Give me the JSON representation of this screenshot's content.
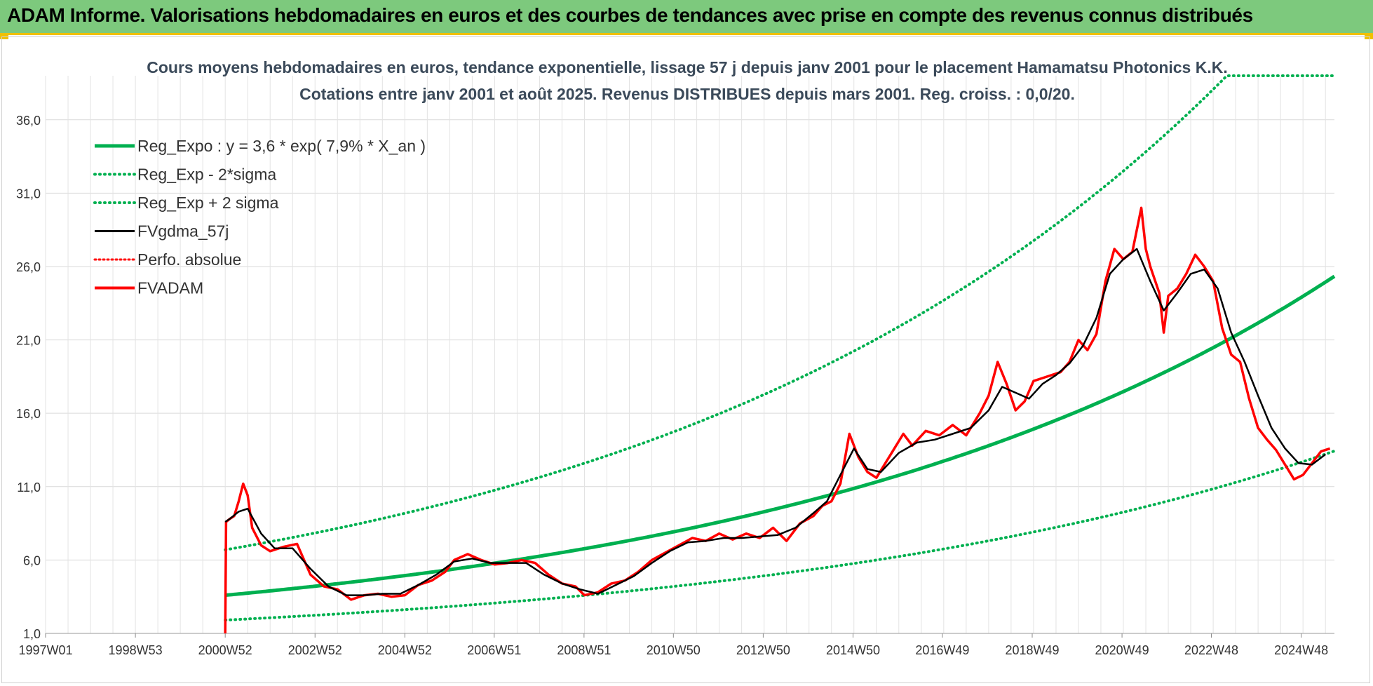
{
  "banner": {
    "title": "ADAM Informe. Valorisations hebdomadaires en euros et des courbes de tendances avec prise en compte des revenus connus distribués"
  },
  "colors": {
    "banner_bg": "#7dc97d",
    "accent": "#f0c000",
    "trend": "#00b050",
    "fvgdma": "#000000",
    "fvadam": "#ff0000",
    "perfo": "#ff0000"
  },
  "chart_data": {
    "type": "line",
    "title": "Cours moyens hebdomadaires en euros, tendance exponentielle, lissage 57 j depuis janv 2001 pour le placement Hamamatsu Photonics K.K.",
    "subtitle": "Cotations entre janv 2001 et août 2025. Revenus DISTRIBUES depuis mars 2001. Reg. croiss. : 0,0/20.",
    "xlabel": "",
    "ylabel": "",
    "x_tick_labels": [
      "1997W01",
      "1998W53",
      "2000W52",
      "2002W52",
      "2004W52",
      "2006W51",
      "2008W51",
      "2010W50",
      "2012W50",
      "2014W50",
      "2016W49",
      "2018W49",
      "2020W49",
      "2022W48",
      "2024W48"
    ],
    "y_tick_labels": [
      "1,0",
      "6,0",
      "11,0",
      "16,0",
      "21,0",
      "26,0",
      "31,0",
      "36,0"
    ],
    "xlim": [
      1997.0,
      2025.7
    ],
    "ylim": [
      1,
      39
    ],
    "grid": true,
    "legend_position": "top-left",
    "legend": [
      {
        "name": "Reg_Expo : y = 3,6 * exp( 7,9% *  X_an )",
        "color": "#00b050",
        "dash": "solid",
        "width": 5
      },
      {
        "name": "Reg_Exp - 2*sigma",
        "color": "#00b050",
        "dash": "dotted",
        "width": 4
      },
      {
        "name": "Reg_Exp + 2 sigma",
        "color": "#00b050",
        "dash": "dotted",
        "width": 4
      },
      {
        "name": "FVgdma_57j",
        "color": "#000000",
        "dash": "solid",
        "width": 3
      },
      {
        "name": "Perfo. absolue",
        "color": "#ff0000",
        "dash": "dotted",
        "width": 3
      },
      {
        "name": "FVADAM",
        "color": "#ff0000",
        "dash": "solid",
        "width": 4
      }
    ],
    "trend": {
      "a": 3.6,
      "b": 0.079,
      "x0": 2001.0,
      "factor_lower": 0.53,
      "factor_upper": 1.86,
      "clip": 39
    },
    "series": [
      {
        "name": "FVADAM",
        "x": [
          2001.0,
          2001.02,
          2001.1,
          2001.2,
          2001.3,
          2001.4,
          2001.5,
          2001.6,
          2001.8,
          2002.0,
          2002.3,
          2002.6,
          2002.9,
          2003.2,
          2003.5,
          2003.8,
          2004.1,
          2004.4,
          2004.7,
          2005.0,
          2005.3,
          2005.6,
          2005.9,
          2006.1,
          2006.4,
          2006.7,
          2007.0,
          2007.3,
          2007.6,
          2007.9,
          2008.2,
          2008.5,
          2008.8,
          2009.0,
          2009.3,
          2009.6,
          2009.9,
          2010.2,
          2010.5,
          2010.8,
          2011.1,
          2011.4,
          2011.7,
          2012.0,
          2012.3,
          2012.6,
          2012.9,
          2013.2,
          2013.5,
          2013.8,
          2014.1,
          2014.3,
          2014.5,
          2014.7,
          2014.9,
          2015.1,
          2015.3,
          2015.5,
          2015.7,
          2015.9,
          2016.1,
          2016.3,
          2016.6,
          2016.9,
          2017.2,
          2017.5,
          2017.8,
          2018.0,
          2018.2,
          2018.4,
          2018.6,
          2018.8,
          2019.0,
          2019.2,
          2019.4,
          2019.6,
          2019.8,
          2020.0,
          2020.2,
          2020.4,
          2020.6,
          2020.8,
          2021.0,
          2021.2,
          2021.4,
          2021.5,
          2021.6,
          2021.8,
          2021.9,
          2022.0,
          2022.2,
          2022.4,
          2022.6,
          2022.8,
          2023.0,
          2023.2,
          2023.4,
          2023.6,
          2023.8,
          2024.0,
          2024.2,
          2024.4,
          2024.6,
          2024.8,
          2025.0,
          2025.2,
          2025.4,
          2025.6
        ],
        "y": [
          1.0,
          8.6,
          8.8,
          9.0,
          10.0,
          11.2,
          10.4,
          8.2,
          7.0,
          6.6,
          6.9,
          7.1,
          5.0,
          4.2,
          4.0,
          3.3,
          3.6,
          3.7,
          3.5,
          3.6,
          4.3,
          4.6,
          5.2,
          6.0,
          6.4,
          6.0,
          5.7,
          5.8,
          6.0,
          5.8,
          5.0,
          4.4,
          4.2,
          3.6,
          3.8,
          4.4,
          4.6,
          5.2,
          6.0,
          6.5,
          7.0,
          7.5,
          7.3,
          7.8,
          7.4,
          7.8,
          7.5,
          8.2,
          7.3,
          8.5,
          9.0,
          9.7,
          10.0,
          11.2,
          14.6,
          13.0,
          12.0,
          11.6,
          12.6,
          13.6,
          14.6,
          13.8,
          14.8,
          14.5,
          15.2,
          14.5,
          16.0,
          17.2,
          19.5,
          18.0,
          16.2,
          16.8,
          18.2,
          18.4,
          18.6,
          18.8,
          19.5,
          21.0,
          20.3,
          21.4,
          25.0,
          27.2,
          26.5,
          27.0,
          30.0,
          27.2,
          26.0,
          24.2,
          21.5,
          24.0,
          24.5,
          25.5,
          26.8,
          26.0,
          25.0,
          21.8,
          20.0,
          19.5,
          17.0,
          15.0,
          14.2,
          13.5,
          12.5,
          11.5,
          11.8,
          12.6,
          13.4,
          13.6
        ]
      },
      {
        "name": "FVgdma_57j",
        "x": [
          2001.0,
          2001.1,
          2001.3,
          2001.5,
          2001.8,
          2002.1,
          2002.5,
          2002.9,
          2003.3,
          2003.7,
          2004.1,
          2004.5,
          2004.9,
          2005.3,
          2005.7,
          2006.1,
          2006.5,
          2006.9,
          2007.3,
          2007.7,
          2008.1,
          2008.5,
          2008.9,
          2009.3,
          2009.7,
          2010.1,
          2010.5,
          2010.9,
          2011.3,
          2011.7,
          2012.1,
          2012.5,
          2012.9,
          2013.3,
          2013.7,
          2014.1,
          2014.4,
          2014.7,
          2015.0,
          2015.3,
          2015.6,
          2016.0,
          2016.4,
          2016.8,
          2017.2,
          2017.6,
          2018.0,
          2018.3,
          2018.6,
          2018.9,
          2019.2,
          2019.5,
          2019.8,
          2020.1,
          2020.4,
          2020.7,
          2021.0,
          2021.3,
          2021.6,
          2021.9,
          2022.2,
          2022.5,
          2022.8,
          2023.1,
          2023.4,
          2023.7,
          2024.0,
          2024.3,
          2024.6,
          2024.9,
          2025.2,
          2025.5
        ],
        "y": [
          8.6,
          8.8,
          9.3,
          9.5,
          7.8,
          6.8,
          6.8,
          5.4,
          4.2,
          3.6,
          3.6,
          3.7,
          3.7,
          4.3,
          5.0,
          5.9,
          6.1,
          5.8,
          5.8,
          5.8,
          5.0,
          4.4,
          4.0,
          3.7,
          4.3,
          4.9,
          5.8,
          6.6,
          7.2,
          7.3,
          7.5,
          7.5,
          7.6,
          7.7,
          8.2,
          9.2,
          10.0,
          11.8,
          13.6,
          12.2,
          12.0,
          13.3,
          14.0,
          14.2,
          14.6,
          15.0,
          16.2,
          17.8,
          17.4,
          17.0,
          18.0,
          18.6,
          19.4,
          20.6,
          22.5,
          25.5,
          26.5,
          27.2,
          25.0,
          23.0,
          24.2,
          25.5,
          25.8,
          24.5,
          21.5,
          19.5,
          17.2,
          15.0,
          13.6,
          12.6,
          12.5,
          13.2
        ]
      }
    ]
  }
}
